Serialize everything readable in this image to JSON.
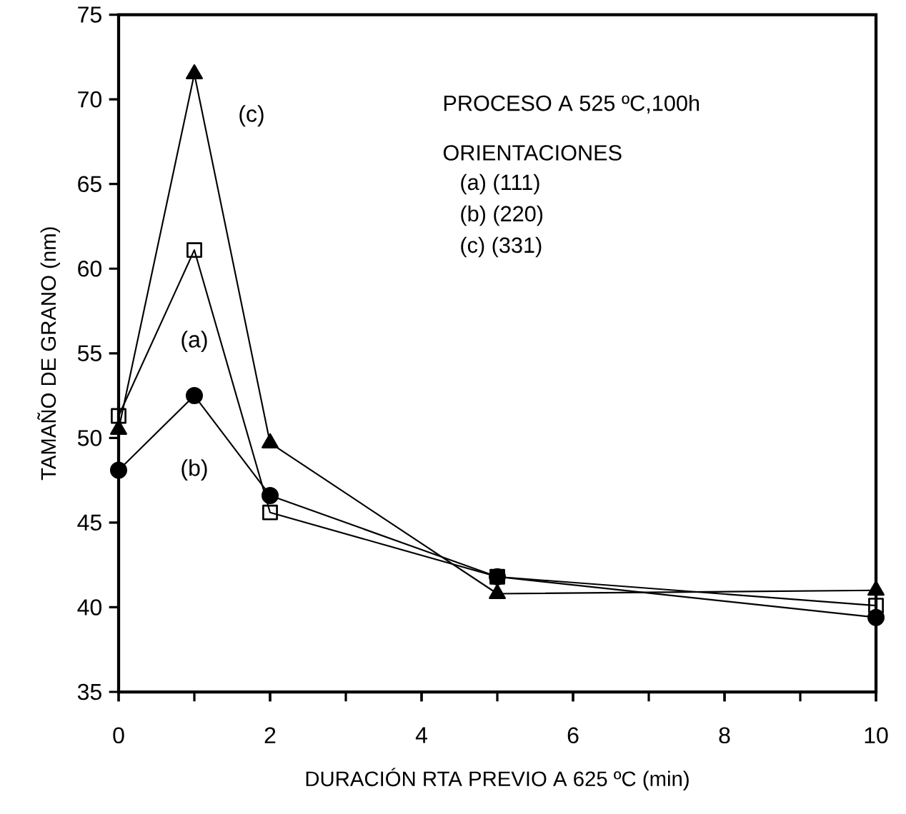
{
  "chart_data": {
    "type": "line",
    "xlabel": "DURACIÓN RTA PREVIO A 625 ºC (min)",
    "ylabel": "TAMAÑO DE GRANO (nm)",
    "x": [
      0,
      1,
      2,
      5,
      10
    ],
    "series": [
      {
        "name": "(a)",
        "color": "#000000",
        "marker": "square",
        "values": [
          51.3,
          61.1,
          45.6,
          41.8,
          40.1
        ]
      },
      {
        "name": "(b)",
        "color": "#000000",
        "marker": "circle",
        "values": [
          48.1,
          52.5,
          46.6,
          41.8,
          39.4
        ]
      },
      {
        "name": "(c)",
        "color": "#000000",
        "marker": "triangle",
        "values": [
          50.5,
          71.5,
          49.7,
          40.8,
          41.0
        ]
      }
    ],
    "xlim": [
      0,
      10
    ],
    "xticks": [
      0,
      2,
      4,
      6,
      8,
      10
    ],
    "ylim": [
      35,
      75
    ],
    "yticks": [
      35,
      40,
      45,
      50,
      55,
      60,
      65,
      70,
      75
    ],
    "grid": false,
    "line_style": "solid",
    "annotations": [
      "PROCESO A 525 ºC,100h",
      "ORIENTACIONES",
      "(a) (111)",
      "(b) (220)",
      "(c) (331)"
    ]
  }
}
